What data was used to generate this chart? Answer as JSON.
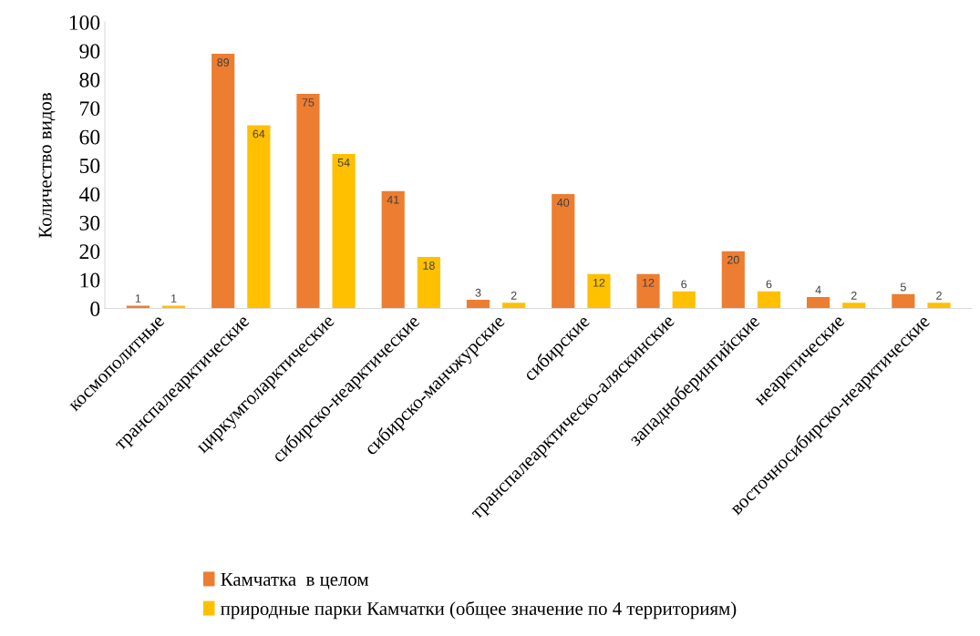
{
  "chart_data": {
    "type": "bar",
    "ylabel": "Количество видов",
    "categories": [
      "космополитные",
      "транспалеарктические",
      "циркумголарктические",
      "сибирско-неарктические",
      "сибирско-манчжурские",
      "сибирские",
      "транспалеарктическо-аляскинские",
      "западноберингийские",
      "неарктические",
      "восточносибирско-неарктические"
    ],
    "series": [
      {
        "name": "Камчатка  в целом",
        "color": "#ed7d31",
        "values": [
          1,
          89,
          75,
          41,
          3,
          40,
          12,
          20,
          4,
          5
        ]
      },
      {
        "name": "природные парки Камчатки (общее значение по 4 территориям)",
        "color": "#ffc000",
        "values": [
          1,
          64,
          54,
          18,
          2,
          12,
          6,
          6,
          2,
          2
        ]
      }
    ],
    "ylim": [
      0,
      100
    ],
    "yticks": [
      0,
      10,
      20,
      30,
      40,
      50,
      60,
      70,
      80,
      90,
      100
    ],
    "data_labels": true,
    "grid": false,
    "legend": "bottom"
  }
}
